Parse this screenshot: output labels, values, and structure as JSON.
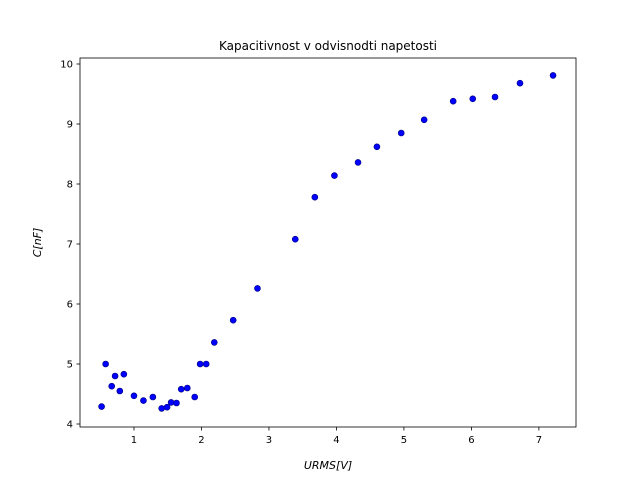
{
  "chart_data": {
    "type": "scatter",
    "title": "Kapacitivnost v odvisnodti napetosti",
    "xlabel": "URMS[V]",
    "ylabel": "C[nF]",
    "xlim": [
      0.2,
      7.55
    ],
    "ylim": [
      3.95,
      10.1
    ],
    "xticks": [
      1,
      2,
      3,
      4,
      5,
      6,
      7
    ],
    "yticks": [
      4,
      5,
      6,
      7,
      8,
      9,
      10
    ],
    "grid": false,
    "marker_color": "#0000ff",
    "series": [
      {
        "points": [
          [
            0.52,
            4.29
          ],
          [
            0.58,
            5.0
          ],
          [
            0.67,
            4.63
          ],
          [
            0.72,
            4.8
          ],
          [
            0.79,
            4.55
          ],
          [
            0.85,
            4.83
          ],
          [
            1.0,
            4.47
          ],
          [
            1.14,
            4.39
          ],
          [
            1.28,
            4.45
          ],
          [
            1.41,
            4.26
          ],
          [
            1.49,
            4.28
          ],
          [
            1.55,
            4.36
          ],
          [
            1.63,
            4.35
          ],
          [
            1.7,
            4.58
          ],
          [
            1.79,
            4.6
          ],
          [
            1.9,
            4.45
          ],
          [
            1.98,
            5.0
          ],
          [
            2.07,
            5.0
          ],
          [
            2.19,
            5.36
          ],
          [
            2.47,
            5.73
          ],
          [
            2.83,
            6.26
          ],
          [
            3.39,
            7.08
          ],
          [
            3.68,
            7.78
          ],
          [
            3.97,
            8.14
          ],
          [
            4.32,
            8.36
          ],
          [
            4.6,
            8.62
          ],
          [
            4.96,
            8.85
          ],
          [
            5.3,
            9.07
          ],
          [
            5.73,
            9.38
          ],
          [
            6.02,
            9.42
          ],
          [
            6.35,
            9.45
          ],
          [
            6.72,
            9.68
          ],
          [
            7.21,
            9.81
          ]
        ]
      }
    ]
  }
}
